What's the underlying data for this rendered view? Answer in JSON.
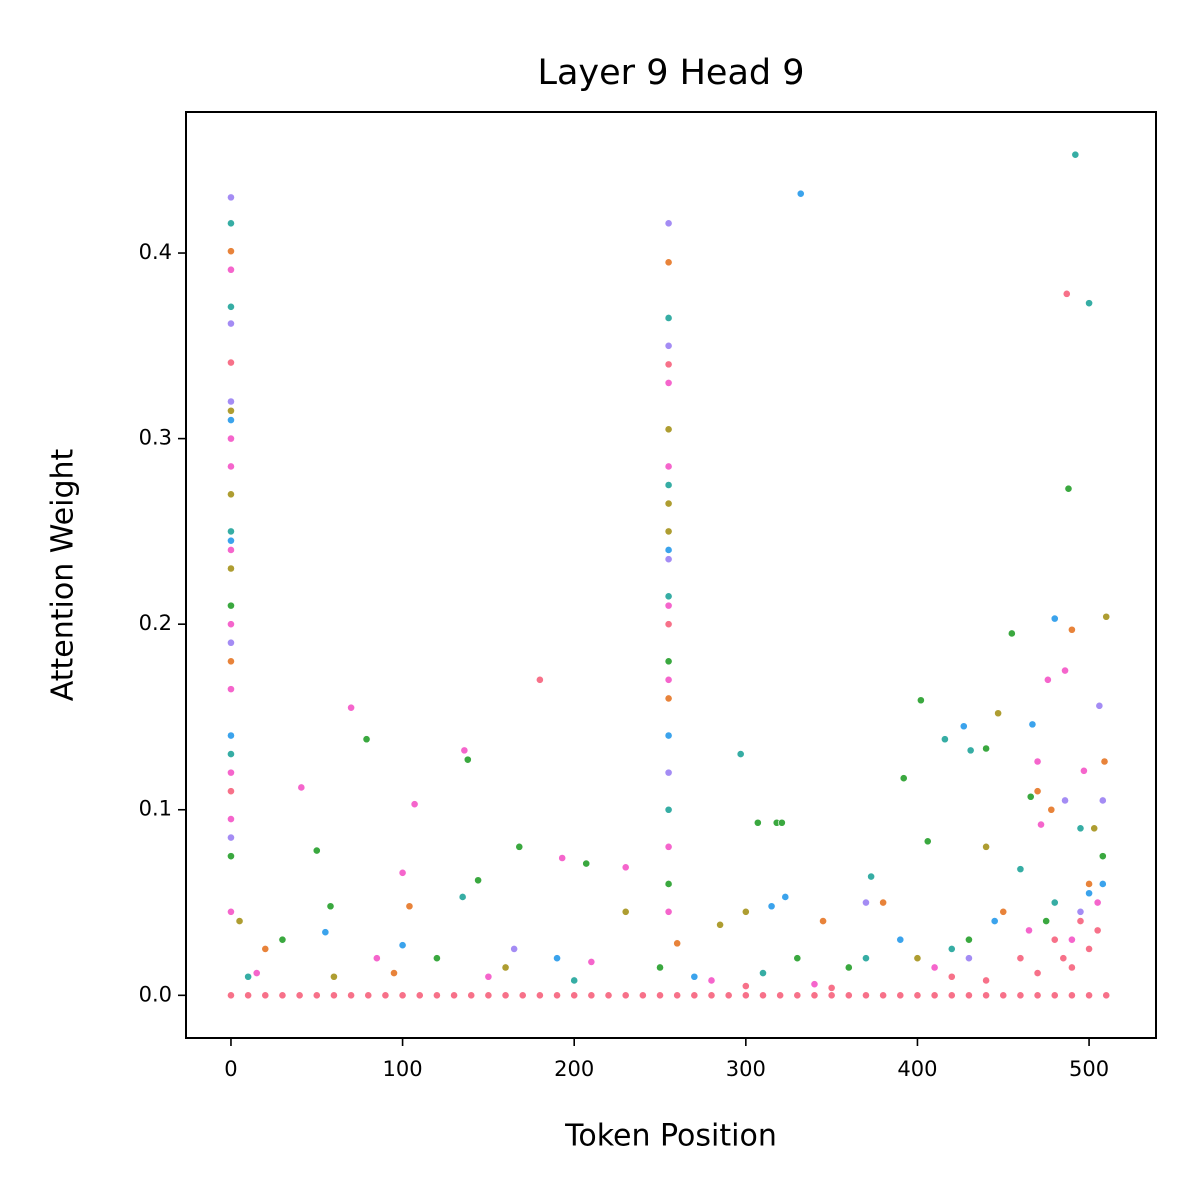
{
  "chart_data": {
    "type": "scatter",
    "title": "Layer 9 Head 9",
    "x_label": "Token Position",
    "y_label": "Attention Weight",
    "xlim": [
      -26.2,
      539
    ],
    "ylim": [
      -0.023,
      0.476
    ],
    "xticks": [
      0,
      100,
      200,
      300,
      400,
      500
    ],
    "yticks": [
      {
        "value": 0,
        "label": "0.0"
      },
      0.1,
      0.2,
      0.3,
      0.4
    ],
    "grid": false,
    "series": [
      {
        "color": "#f77189",
        "x": [
          0,
          10,
          20,
          30,
          40,
          50,
          60,
          70,
          80,
          90,
          100,
          110,
          120,
          130,
          140,
          150,
          160,
          170,
          180,
          190,
          200,
          210,
          220,
          230,
          240,
          250,
          260,
          270,
          280,
          290,
          300,
          310,
          320,
          330,
          340,
          350,
          360,
          370,
          380,
          390,
          400,
          410,
          420,
          430,
          440,
          450,
          460,
          470,
          480,
          490,
          500,
          510,
          0,
          0,
          255,
          255,
          487,
          180,
          300,
          350,
          420,
          460,
          480,
          490,
          500,
          505,
          470,
          440,
          495,
          485
        ],
        "values": [
          0,
          0,
          0,
          0,
          0,
          0,
          0,
          0,
          0,
          0,
          0,
          0,
          0,
          0,
          0,
          0,
          0,
          0,
          0,
          0,
          0,
          0,
          0,
          0,
          0,
          0,
          0,
          0,
          0,
          0,
          0,
          0,
          0,
          0,
          0,
          0,
          0,
          0,
          0,
          0,
          0,
          0,
          0,
          0,
          0,
          0,
          0,
          0,
          0,
          0,
          0,
          0,
          0.341,
          0.11,
          0.34,
          0.2,
          0.378,
          0.17,
          0.005,
          0.004,
          0.01,
          0.02,
          0.03,
          0.015,
          0.025,
          0.035,
          0.012,
          0.008,
          0.04,
          0.02
        ]
      },
      {
        "color": "#e8833a",
        "x": [
          0,
          0,
          255,
          255,
          490,
          104,
          509,
          478,
          470,
          380,
          20,
          95,
          260,
          345,
          450,
          500
        ],
        "values": [
          0.401,
          0.18,
          0.395,
          0.16,
          0.197,
          0.048,
          0.126,
          0.1,
          0.11,
          0.05,
          0.025,
          0.012,
          0.028,
          0.04,
          0.045,
          0.06
        ]
      },
      {
        "color": "#ae9d31",
        "x": [
          0,
          0,
          0,
          255,
          255,
          255,
          510,
          447,
          440,
          5,
          230,
          285,
          300,
          400,
          503,
          60,
          160
        ],
        "values": [
          0.315,
          0.27,
          0.23,
          0.305,
          0.265,
          0.25,
          0.204,
          0.152,
          0.08,
          0.04,
          0.045,
          0.038,
          0.045,
          0.02,
          0.09,
          0.01,
          0.015
        ]
      },
      {
        "color": "#3aa83f",
        "x": [
          0,
          0,
          255,
          255,
          488,
          79,
          138,
          50,
          168,
          207,
          144,
          58,
          307,
          318,
          321,
          392,
          402,
          406,
          440,
          455,
          466,
          508,
          30,
          120,
          250,
          330,
          360,
          430,
          475
        ],
        "values": [
          0.21,
          0.075,
          0.18,
          0.06,
          0.273,
          0.138,
          0.127,
          0.078,
          0.08,
          0.071,
          0.062,
          0.048,
          0.093,
          0.093,
          0.093,
          0.117,
          0.159,
          0.083,
          0.133,
          0.195,
          0.107,
          0.075,
          0.03,
          0.02,
          0.015,
          0.02,
          0.015,
          0.03,
          0.04
        ]
      },
      {
        "color": "#36ada4",
        "x": [
          0,
          0,
          0,
          0,
          255,
          255,
          255,
          255,
          492,
          500,
          297,
          135,
          373,
          431,
          416,
          460,
          495,
          10,
          200,
          310,
          370,
          420,
          480
        ],
        "values": [
          0.416,
          0.371,
          0.25,
          0.13,
          0.365,
          0.275,
          0.215,
          0.1,
          0.453,
          0.373,
          0.13,
          0.053,
          0.064,
          0.132,
          0.138,
          0.068,
          0.09,
          0.01,
          0.008,
          0.012,
          0.02,
          0.025,
          0.05
        ]
      },
      {
        "color": "#3ba3ec",
        "x": [
          0,
          0,
          0,
          255,
          255,
          332,
          480,
          427,
          467,
          323,
          315,
          100,
          55,
          190,
          270,
          390,
          445,
          500,
          508
        ],
        "values": [
          0.31,
          0.245,
          0.14,
          0.24,
          0.14,
          0.432,
          0.203,
          0.145,
          0.146,
          0.053,
          0.048,
          0.027,
          0.034,
          0.02,
          0.01,
          0.03,
          0.04,
          0.055,
          0.06
        ]
      },
      {
        "color": "#a48cf4",
        "x": [
          0,
          0,
          0,
          0,
          0,
          255,
          255,
          255,
          255,
          506,
          508,
          486,
          165,
          430,
          495,
          370
        ],
        "values": [
          0.43,
          0.362,
          0.32,
          0.19,
          0.085,
          0.416,
          0.35,
          0.235,
          0.12,
          0.156,
          0.105,
          0.105,
          0.025,
          0.02,
          0.045,
          0.05
        ]
      },
      {
        "color": "#f565cc",
        "x": [
          0,
          0,
          0,
          0,
          0,
          0,
          0,
          0,
          0,
          255,
          255,
          255,
          255,
          255,
          255,
          70,
          41,
          107,
          136,
          100,
          193,
          230,
          470,
          497,
          472,
          486,
          476,
          15,
          85,
          150,
          210,
          280,
          340,
          410,
          465,
          490,
          505
        ],
        "values": [
          0.391,
          0.3,
          0.285,
          0.24,
          0.2,
          0.165,
          0.12,
          0.095,
          0.045,
          0.33,
          0.285,
          0.21,
          0.17,
          0.08,
          0.045,
          0.155,
          0.112,
          0.103,
          0.132,
          0.066,
          0.074,
          0.069,
          0.126,
          0.121,
          0.092,
          0.175,
          0.17,
          0.012,
          0.02,
          0.01,
          0.018,
          0.008,
          0.006,
          0.015,
          0.035,
          0.03,
          0.05
        ]
      }
    ]
  }
}
